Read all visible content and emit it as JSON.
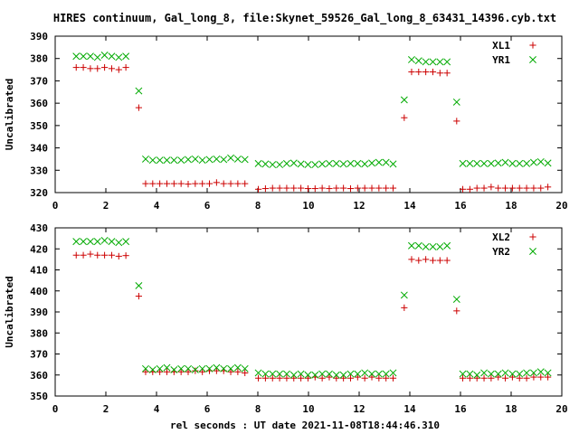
{
  "title": "HIRES continuum, Gal_long_8, file:Skynet_59526_Gal_long_8_63431_14396.cyb.txt",
  "xlabel": "rel seconds : UT date 2021-11-08T18:44:46.310",
  "colors": {
    "plus_series": "#cc0000",
    "cross_series": "#00aa00",
    "axis": "#000000"
  },
  "chart_data": [
    {
      "type": "scatter",
      "ylabel": "Uncalibrated",
      "xlim": [
        0,
        20
      ],
      "ylim": [
        320,
        390
      ],
      "xticks": [
        0,
        2,
        4,
        6,
        8,
        10,
        12,
        14,
        16,
        18,
        20
      ],
      "yticks": [
        320,
        330,
        340,
        350,
        360,
        370,
        380,
        390
      ],
      "legend_position": "top-right",
      "series": [
        {
          "name": "XL1",
          "marker": "plus",
          "color": "#cc0000",
          "points": [
            [
              0.83,
              376
            ],
            [
              1.11,
              376
            ],
            [
              1.39,
              375.5
            ],
            [
              1.67,
              375.5
            ],
            [
              1.95,
              376
            ],
            [
              2.23,
              375.5
            ],
            [
              2.51,
              375
            ],
            [
              2.79,
              376
            ],
            [
              3.3,
              358
            ],
            [
              3.57,
              324
            ],
            [
              3.85,
              324
            ],
            [
              4.13,
              324
            ],
            [
              4.41,
              324
            ],
            [
              4.69,
              324
            ],
            [
              4.97,
              324
            ],
            [
              5.25,
              323.8
            ],
            [
              5.53,
              324
            ],
            [
              5.81,
              324
            ],
            [
              6.09,
              324
            ],
            [
              6.37,
              324.5
            ],
            [
              6.65,
              324
            ],
            [
              6.93,
              324
            ],
            [
              7.21,
              324
            ],
            [
              7.49,
              324
            ],
            [
              8.02,
              321.5
            ],
            [
              8.3,
              321.8
            ],
            [
              8.58,
              322
            ],
            [
              8.86,
              322
            ],
            [
              9.14,
              322
            ],
            [
              9.42,
              322
            ],
            [
              9.7,
              322
            ],
            [
              9.98,
              321.8
            ],
            [
              10.26,
              321.8
            ],
            [
              10.54,
              322
            ],
            [
              10.82,
              321.8
            ],
            [
              11.1,
              322
            ],
            [
              11.38,
              322
            ],
            [
              11.66,
              321.8
            ],
            [
              11.94,
              322
            ],
            [
              12.22,
              322
            ],
            [
              12.5,
              322
            ],
            [
              12.78,
              322
            ],
            [
              13.06,
              322
            ],
            [
              13.34,
              322
            ],
            [
              13.78,
              353.5
            ],
            [
              14.07,
              374
            ],
            [
              14.35,
              374
            ],
            [
              14.63,
              374
            ],
            [
              14.91,
              374
            ],
            [
              15.19,
              373.5
            ],
            [
              15.47,
              373.5
            ],
            [
              15.85,
              352
            ],
            [
              16.09,
              321.5
            ],
            [
              16.37,
              321.5
            ],
            [
              16.65,
              322
            ],
            [
              16.93,
              322
            ],
            [
              17.21,
              322.5
            ],
            [
              17.49,
              322
            ],
            [
              17.77,
              322
            ],
            [
              18.05,
              322
            ],
            [
              18.33,
              322
            ],
            [
              18.61,
              322
            ],
            [
              18.89,
              322
            ],
            [
              19.17,
              322
            ],
            [
              19.45,
              322.5
            ]
          ]
        },
        {
          "name": "YR1",
          "marker": "cross",
          "color": "#00aa00",
          "points": [
            [
              0.83,
              381
            ],
            [
              1.11,
              381
            ],
            [
              1.39,
              381
            ],
            [
              1.67,
              380.5
            ],
            [
              1.95,
              381.5
            ],
            [
              2.23,
              381
            ],
            [
              2.51,
              380.5
            ],
            [
              2.79,
              381
            ],
            [
              3.3,
              365.5
            ],
            [
              3.57,
              335
            ],
            [
              3.85,
              334.5
            ],
            [
              4.13,
              334.5
            ],
            [
              4.41,
              334.5
            ],
            [
              4.69,
              334.5
            ],
            [
              4.97,
              334.5
            ],
            [
              5.25,
              334.8
            ],
            [
              5.53,
              335
            ],
            [
              5.81,
              334.5
            ],
            [
              6.09,
              334.8
            ],
            [
              6.37,
              335
            ],
            [
              6.65,
              334.8
            ],
            [
              6.93,
              335.5
            ],
            [
              7.21,
              335
            ],
            [
              7.49,
              334.8
            ],
            [
              8.02,
              333
            ],
            [
              8.3,
              332.8
            ],
            [
              8.58,
              332.5
            ],
            [
              8.86,
              332.5
            ],
            [
              9.14,
              333
            ],
            [
              9.42,
              333.2
            ],
            [
              9.7,
              332.8
            ],
            [
              9.98,
              332.5
            ],
            [
              10.26,
              332.5
            ],
            [
              10.54,
              332.8
            ],
            [
              10.82,
              333
            ],
            [
              11.1,
              333
            ],
            [
              11.38,
              332.8
            ],
            [
              11.66,
              333
            ],
            [
              11.94,
              333
            ],
            [
              12.22,
              332.8
            ],
            [
              12.5,
              333.2
            ],
            [
              12.78,
              333.5
            ],
            [
              13.06,
              333.5
            ],
            [
              13.34,
              332.8
            ],
            [
              13.78,
              361.5
            ],
            [
              14.07,
              379.5
            ],
            [
              14.35,
              379
            ],
            [
              14.63,
              378.5
            ],
            [
              14.91,
              378.5
            ],
            [
              15.19,
              378.5
            ],
            [
              15.47,
              378.5
            ],
            [
              15.85,
              360.5
            ],
            [
              16.09,
              333
            ],
            [
              16.37,
              333
            ],
            [
              16.65,
              333
            ],
            [
              16.93,
              333
            ],
            [
              17.21,
              333
            ],
            [
              17.49,
              333.2
            ],
            [
              17.77,
              333.5
            ],
            [
              18.05,
              333
            ],
            [
              18.33,
              333
            ],
            [
              18.61,
              333
            ],
            [
              18.89,
              333.5
            ],
            [
              19.17,
              333.8
            ],
            [
              19.45,
              333.2
            ]
          ]
        }
      ]
    },
    {
      "type": "scatter",
      "ylabel": "Uncalibrated",
      "xlim": [
        0,
        20
      ],
      "ylim": [
        350,
        430
      ],
      "xticks": [
        0,
        2,
        4,
        6,
        8,
        10,
        12,
        14,
        16,
        18,
        20
      ],
      "yticks": [
        350,
        360,
        370,
        380,
        390,
        400,
        410,
        420,
        430
      ],
      "legend_position": "top-right",
      "series": [
        {
          "name": "XL2",
          "marker": "plus",
          "color": "#cc0000",
          "points": [
            [
              0.83,
              417
            ],
            [
              1.11,
              417
            ],
            [
              1.39,
              417.5
            ],
            [
              1.67,
              417
            ],
            [
              1.95,
              417
            ],
            [
              2.23,
              417
            ],
            [
              2.51,
              416.5
            ],
            [
              2.79,
              416.8
            ],
            [
              3.3,
              397.5
            ],
            [
              3.57,
              361.5
            ],
            [
              3.85,
              361.5
            ],
            [
              4.13,
              361.5
            ],
            [
              4.41,
              361.5
            ],
            [
              4.69,
              361.5
            ],
            [
              4.97,
              361.5
            ],
            [
              5.25,
              361.5
            ],
            [
              5.53,
              362
            ],
            [
              5.81,
              361.5
            ],
            [
              6.09,
              362
            ],
            [
              6.37,
              362
            ],
            [
              6.65,
              362
            ],
            [
              6.93,
              361.5
            ],
            [
              7.21,
              361.5
            ],
            [
              7.49,
              361
            ],
            [
              8.02,
              358.5
            ],
            [
              8.3,
              358.5
            ],
            [
              8.58,
              358.5
            ],
            [
              8.86,
              358.5
            ],
            [
              9.14,
              358.5
            ],
            [
              9.42,
              358.5
            ],
            [
              9.7,
              358.5
            ],
            [
              9.98,
              358.5
            ],
            [
              10.26,
              359
            ],
            [
              10.54,
              358.5
            ],
            [
              10.82,
              359
            ],
            [
              11.1,
              358.5
            ],
            [
              11.38,
              358.5
            ],
            [
              11.66,
              358.5
            ],
            [
              11.94,
              359
            ],
            [
              12.22,
              358.5
            ],
            [
              12.5,
              359
            ],
            [
              12.78,
              358.5
            ],
            [
              13.06,
              358.5
            ],
            [
              13.34,
              358.5
            ],
            [
              13.78,
              392
            ],
            [
              14.07,
              415
            ],
            [
              14.35,
              414.5
            ],
            [
              14.63,
              415
            ],
            [
              14.91,
              414.5
            ],
            [
              15.19,
              414.5
            ],
            [
              15.47,
              414.5
            ],
            [
              15.85,
              390.5
            ],
            [
              16.09,
              358.5
            ],
            [
              16.37,
              358.5
            ],
            [
              16.65,
              358.5
            ],
            [
              16.93,
              358.5
            ],
            [
              17.21,
              358.5
            ],
            [
              17.49,
              359
            ],
            [
              17.77,
              358.5
            ],
            [
              18.05,
              359
            ],
            [
              18.33,
              358.5
            ],
            [
              18.61,
              358.5
            ],
            [
              18.89,
              359
            ],
            [
              19.17,
              359
            ],
            [
              19.45,
              359
            ]
          ]
        },
        {
          "name": "YR2",
          "marker": "cross",
          "color": "#00aa00",
          "points": [
            [
              0.83,
              423.5
            ],
            [
              1.11,
              423.5
            ],
            [
              1.39,
              423.5
            ],
            [
              1.67,
              423.5
            ],
            [
              1.95,
              424
            ],
            [
              2.23,
              423.5
            ],
            [
              2.51,
              423
            ],
            [
              2.79,
              423.5
            ],
            [
              3.3,
              402.5
            ],
            [
              3.57,
              363
            ],
            [
              3.85,
              362.5
            ],
            [
              4.13,
              363
            ],
            [
              4.41,
              363.5
            ],
            [
              4.69,
              362.5
            ],
            [
              4.97,
              363
            ],
            [
              5.25,
              363
            ],
            [
              5.53,
              362.5
            ],
            [
              5.81,
              363
            ],
            [
              6.09,
              363
            ],
            [
              6.37,
              363.5
            ],
            [
              6.65,
              363
            ],
            [
              6.93,
              363
            ],
            [
              7.21,
              363.5
            ],
            [
              7.49,
              363
            ],
            [
              8.02,
              361
            ],
            [
              8.3,
              360.5
            ],
            [
              8.58,
              360.5
            ],
            [
              8.86,
              360.5
            ],
            [
              9.14,
              360.5
            ],
            [
              9.42,
              360
            ],
            [
              9.7,
              360.5
            ],
            [
              9.98,
              360
            ],
            [
              10.26,
              360
            ],
            [
              10.54,
              360.5
            ],
            [
              10.82,
              360.5
            ],
            [
              11.1,
              360
            ],
            [
              11.38,
              360
            ],
            [
              11.66,
              360.5
            ],
            [
              11.94,
              360.5
            ],
            [
              12.22,
              361
            ],
            [
              12.5,
              360.5
            ],
            [
              12.78,
              360.5
            ],
            [
              13.06,
              360.5
            ],
            [
              13.34,
              361
            ],
            [
              13.78,
              398
            ],
            [
              14.07,
              421.5
            ],
            [
              14.35,
              421.5
            ],
            [
              14.63,
              421
            ],
            [
              14.91,
              421
            ],
            [
              15.19,
              421
            ],
            [
              15.47,
              421.5
            ],
            [
              15.85,
              396
            ],
            [
              16.09,
              360.5
            ],
            [
              16.37,
              360.5
            ],
            [
              16.65,
              360
            ],
            [
              16.93,
              361
            ],
            [
              17.21,
              360.5
            ],
            [
              17.49,
              360.5
            ],
            [
              17.77,
              361
            ],
            [
              18.05,
              360.5
            ],
            [
              18.33,
              360.5
            ],
            [
              18.61,
              361
            ],
            [
              18.89,
              361
            ],
            [
              19.17,
              361.5
            ],
            [
              19.45,
              361
            ]
          ]
        }
      ]
    }
  ]
}
